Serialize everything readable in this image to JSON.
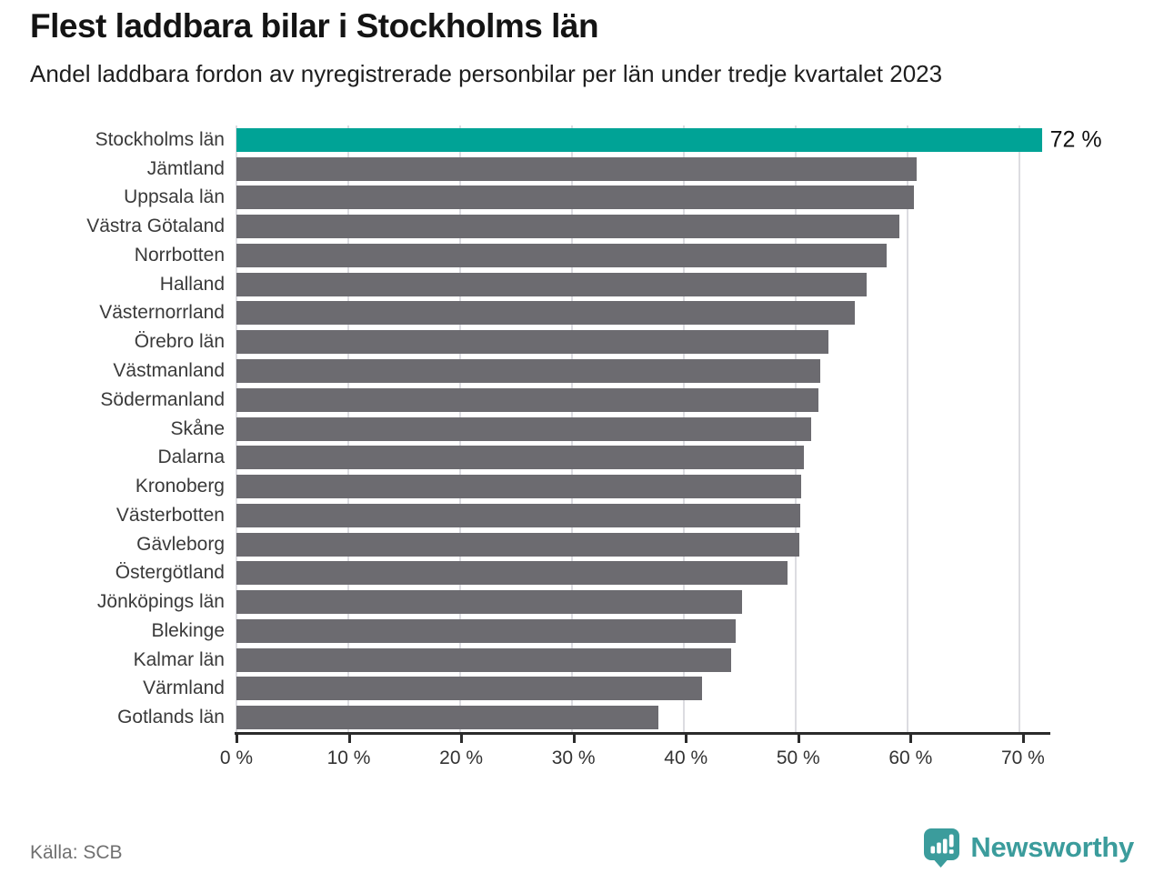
{
  "title": "Flest laddbara bilar i Stockholms län",
  "subtitle": "Andel laddbara fordon av nyregistrerade personbilar per län under tredje kvartalet 2023",
  "footer": {
    "source": "Källa: SCB",
    "brand_name": "Newsworthy",
    "brand_icon": "newsworthy-logo-icon"
  },
  "colors": {
    "highlight": "#00a396",
    "bar": "#6c6b70",
    "brand": "#3b9c9c",
    "grid": "#dcdce1",
    "axis": "#2b2b2b",
    "title_text": "#141414",
    "label_text": "#3a3a3a",
    "source_text": "#707070"
  },
  "chart_data": {
    "type": "bar",
    "orientation": "horizontal",
    "title": "Flest laddbara bilar i Stockholms län",
    "subtitle": "Andel laddbara fordon av nyregistrerade personbilar per län under tredje kvartalet 2023",
    "unit": "%",
    "categories": [
      "Stockholms län",
      "Jämtland",
      "Uppsala län",
      "Västra Götaland",
      "Norrbotten",
      "Halland",
      "Västernorrland",
      "Örebro län",
      "Västmanland",
      "Södermanland",
      "Skåne",
      "Dalarna",
      "Kronoberg",
      "Västerbotten",
      "Gävleborg",
      "Östergötland",
      "Jönköpings län",
      "Blekinge",
      "Kalmar län",
      "Värmland",
      "Gotlands län"
    ],
    "values": [
      72,
      60.8,
      60.6,
      59.3,
      58.1,
      56.3,
      55.3,
      52.9,
      52.2,
      52.0,
      51.4,
      50.7,
      50.5,
      50.4,
      50.3,
      49.3,
      45.2,
      44.6,
      44.2,
      41.6,
      37.7
    ],
    "highlight_index": 0,
    "value_labels": [
      {
        "index": 0,
        "text": "72 %"
      }
    ],
    "x_ticks": [
      "0 %",
      "10 %",
      "20 %",
      "30 %",
      "40 %",
      "50 %",
      "60 %",
      "70 %"
    ],
    "x_tick_values": [
      0,
      10,
      20,
      30,
      40,
      50,
      60,
      70
    ],
    "xlim": [
      0,
      72.6
    ],
    "grid": true,
    "legend": false,
    "source": "Källa: SCB"
  }
}
